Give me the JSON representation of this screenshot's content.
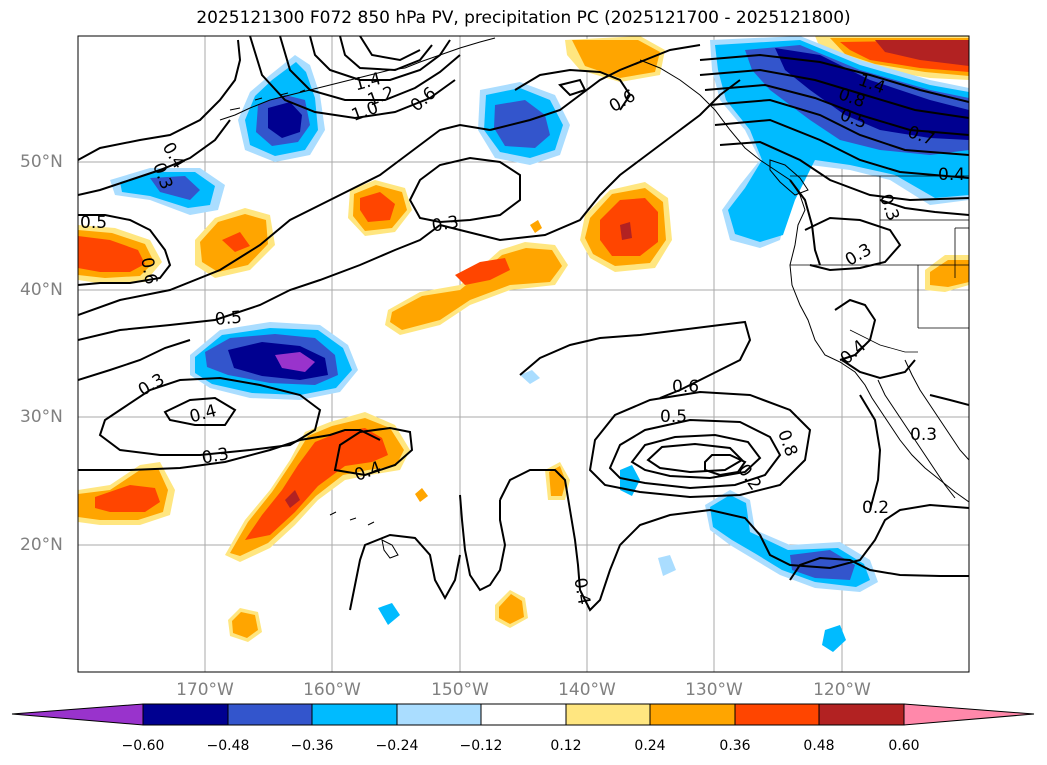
{
  "title": "2025121300 F072 850 hPa PV, precipitation PC (2025121700 - 2025121800)",
  "lat_labels": [
    "50°N",
    "40°N",
    "30°N",
    "20°N"
  ],
  "lon_labels": [
    "170°W",
    "160°W",
    "150°W",
    "140°W",
    "130°W",
    "120°W"
  ],
  "contour_labels": [
    "0.5",
    "0.6",
    "0.4",
    "0.3",
    "1.4",
    "1.2",
    "1.0",
    "0.6",
    "0.6",
    "1.4",
    "0.8",
    "0.5",
    "0.7",
    "0.4",
    "0.3",
    "0.3",
    "0.3",
    "0.4",
    "0.5",
    "0.3",
    "0.4",
    "0.3",
    "0.4",
    "0.6",
    "0.5",
    "0.8",
    "0.2",
    "0.2",
    "0.4",
    "0.3"
  ],
  "colorbar": {
    "ticks": [
      "−0.60",
      "−0.48",
      "−0.36",
      "−0.24",
      "−0.12",
      "0.12",
      "0.24",
      "0.36",
      "0.48",
      "0.60"
    ],
    "colors": [
      "#9933cc",
      "#000090",
      "#3355cc",
      "#00bbff",
      "#aaddff",
      "#ffffff",
      "#ffe680",
      "#ffa500",
      "#ff4500",
      "#b22222",
      "#ff88aa"
    ]
  },
  "palette": {
    "neg1": "#aaddff",
    "neg2": "#00bbff",
    "neg3": "#3355cc",
    "neg4": "#000090",
    "neg5": "#9933cc",
    "pos1": "#ffe680",
    "pos2": "#ffa500",
    "pos3": "#ff4500",
    "pos4": "#b22222"
  }
}
